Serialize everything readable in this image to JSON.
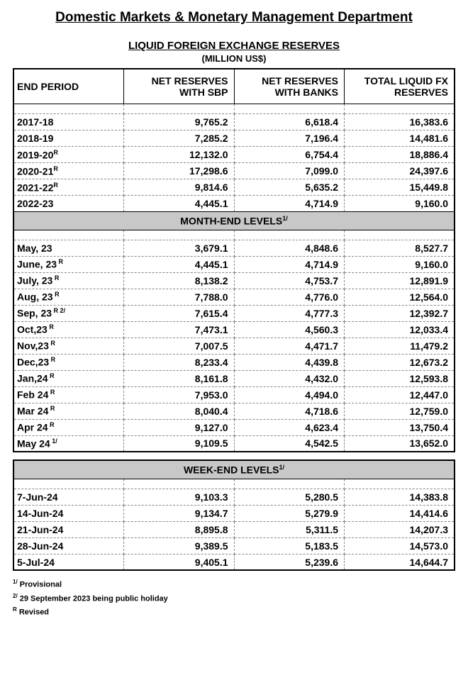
{
  "department_title": "Domestic Markets & Monetary Management Department",
  "subtitle": "LIQUID FOREIGN EXCHANGE RESERVES",
  "unit": "(MILLION US$)",
  "headers": {
    "period": "END PERIOD",
    "sbp": "NET RESERVES WITH SBP",
    "banks": "NET RESERVES WITH BANKS",
    "total": "TOTAL LIQUID FX RESERVES"
  },
  "yearly": [
    {
      "period": "2017-18",
      "sup": "",
      "sbp": "9,765.2",
      "banks": "6,618.4",
      "total": "16,383.6"
    },
    {
      "period": "2018-19",
      "sup": "",
      "sbp": "7,285.2",
      "banks": "7,196.4",
      "total": "14,481.6"
    },
    {
      "period": "2019-20",
      "sup": "R",
      "sbp": "12,132.0",
      "banks": "6,754.4",
      "total": "18,886.4"
    },
    {
      "period": "2020-21",
      "sup": "R",
      "sbp": "17,298.6",
      "banks": "7,099.0",
      "total": "24,397.6"
    },
    {
      "period": "2021-22",
      "sup": "R",
      "sbp": "9,814.6",
      "banks": "5,635.2",
      "total": "15,449.8"
    },
    {
      "period": "2022-23",
      "sup": "",
      "sbp": "4,445.1",
      "banks": "4,714.9",
      "total": "9,160.0"
    }
  ],
  "month_section_label": "MONTH-END LEVELS",
  "month_section_sup": "1/",
  "monthly": [
    {
      "period": "May, 23",
      "sup": "",
      "sbp": "3,679.1",
      "banks": "4,848.6",
      "total": "8,527.7"
    },
    {
      "period": "June, 23",
      "sup": " R",
      "sbp": "4,445.1",
      "banks": "4,714.9",
      "total": "9,160.0"
    },
    {
      "period": "July, 23",
      "sup": " R",
      "sbp": "8,138.2",
      "banks": "4,753.7",
      "total": "12,891.9"
    },
    {
      "period": "Aug, 23",
      "sup": " R",
      "sbp": "7,788.0",
      "banks": "4,776.0",
      "total": "12,564.0"
    },
    {
      "period": "Sep, 23",
      "sup": " R 2/",
      "sbp": "7,615.4",
      "banks": "4,777.3",
      "total": "12,392.7"
    },
    {
      "period": "Oct,23",
      "sup": " R",
      "sbp": "7,473.1",
      "banks": "4,560.3",
      "total": "12,033.4"
    },
    {
      "period": "Nov,23",
      "sup": " R",
      "sbp": "7,007.5",
      "banks": "4,471.7",
      "total": "11,479.2"
    },
    {
      "period": "Dec,23",
      "sup": " R",
      "sbp": "8,233.4",
      "banks": "4,439.8",
      "total": "12,673.2"
    },
    {
      "period": "Jan,24",
      "sup": " R",
      "sbp": "8,161.8",
      "banks": "4,432.0",
      "total": "12,593.8"
    },
    {
      "period": "Feb 24",
      "sup": " R",
      "sbp": "7,953.0",
      "banks": "4,494.0",
      "total": "12,447.0"
    },
    {
      "period": "Mar 24",
      "sup": " R",
      "sbp": "8,040.4",
      "banks": "4,718.6",
      "total": "12,759.0"
    },
    {
      "period": "Apr 24",
      "sup": " R",
      "sbp": "9,127.0",
      "banks": "4,623.4",
      "total": "13,750.4"
    },
    {
      "period": "May 24",
      "sup": " 1/",
      "sbp": "9,109.5",
      "banks": "4,542.5",
      "total": "13,652.0"
    }
  ],
  "week_section_label": "WEEK-END LEVELS",
  "week_section_sup": "1/",
  "weekly": [
    {
      "period": "7-Jun-24",
      "sbp": "9,103.3",
      "banks": "5,280.5",
      "total": "14,383.8"
    },
    {
      "period": "14-Jun-24",
      "sbp": "9,134.7",
      "banks": "5,279.9",
      "total": "14,414.6"
    },
    {
      "period": "21-Jun-24",
      "sbp": "8,895.8",
      "banks": "5,311.5",
      "total": "14,207.3"
    },
    {
      "period": "28-Jun-24",
      "sbp": "9,389.5",
      "banks": "5,183.5",
      "total": "14,573.0"
    },
    {
      "period": "5-Jul-24",
      "sbp": "9,405.1",
      "banks": "5,239.6",
      "total": "14,644.7"
    }
  ],
  "footnotes": {
    "f1": {
      "marker": "1/",
      "text": " Provisional"
    },
    "f2": {
      "marker": "2/",
      "text": " 29 September 2023 being public holiday"
    },
    "f3": {
      "marker": "R",
      "text": " Revised"
    }
  }
}
